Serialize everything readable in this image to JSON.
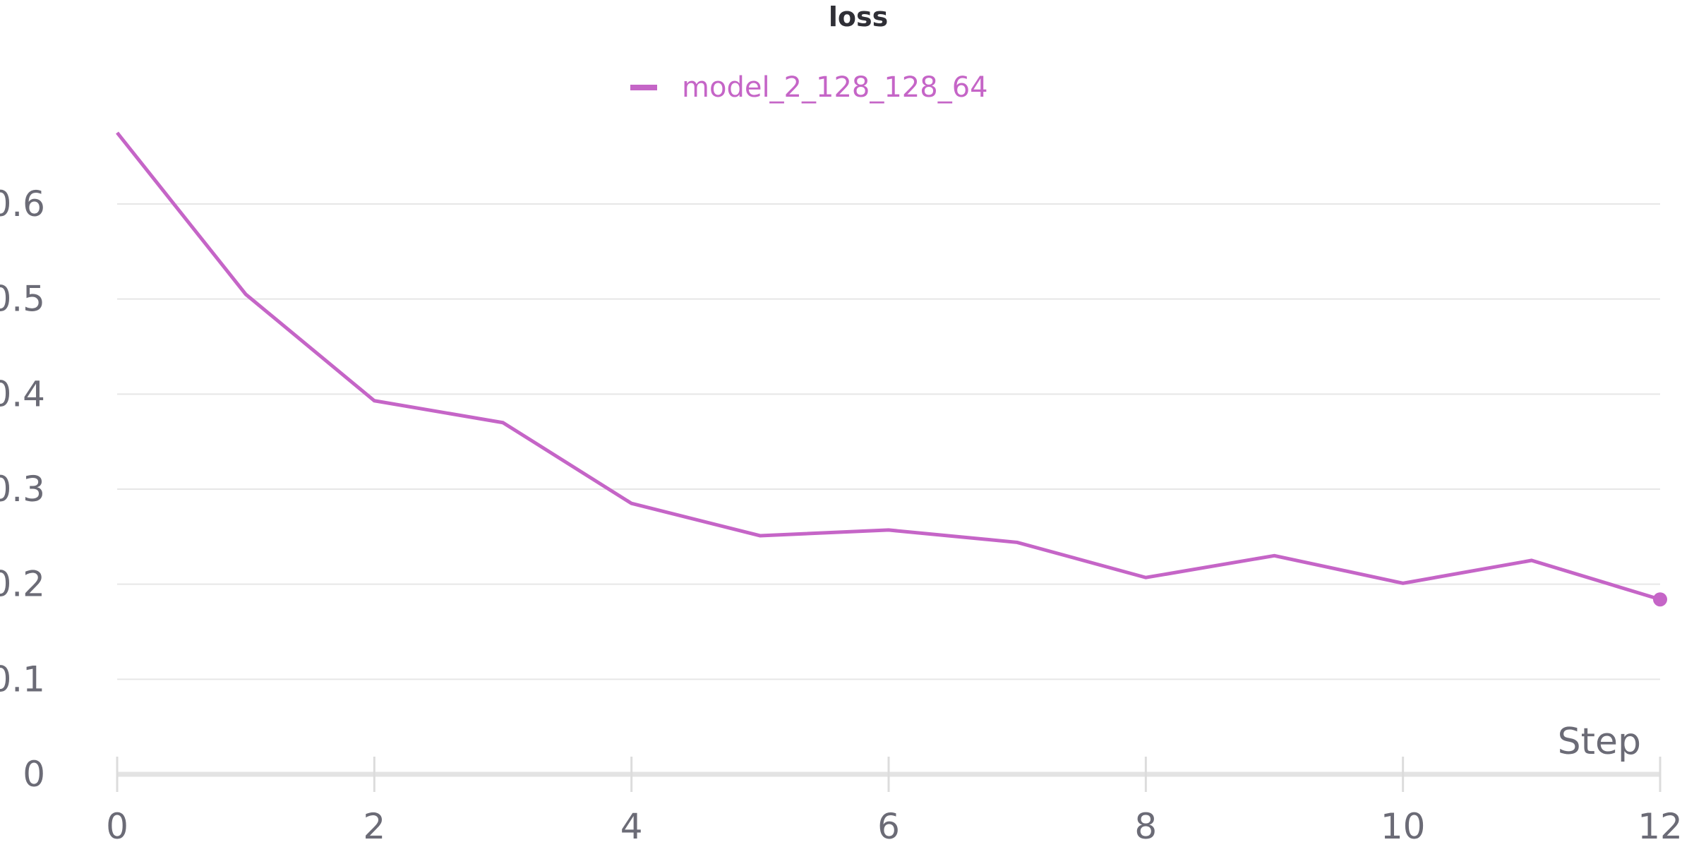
{
  "chart_data": {
    "type": "line",
    "title": "loss",
    "xlabel": "Step",
    "ylabel": "",
    "xlim": [
      0,
      12
    ],
    "ylim": [
      0,
      0.7
    ],
    "xticks": [
      "0",
      "2",
      "4",
      "6",
      "8",
      "10",
      "12"
    ],
    "yticks": [
      "0",
      "0.1",
      "0.2",
      "0.3",
      "0.4",
      "0.5",
      "0.6"
    ],
    "grid": true,
    "legend_position": "top-center",
    "series": [
      {
        "name": "model_2_128_128_64",
        "color": "#c565c7",
        "x": [
          0,
          1,
          2,
          3,
          4,
          5,
          6,
          7,
          8,
          9,
          10,
          11,
          12
        ],
        "y": [
          0.675,
          0.505,
          0.393,
          0.37,
          0.285,
          0.251,
          0.257,
          0.244,
          0.207,
          0.23,
          0.201,
          0.225,
          0.184
        ]
      }
    ]
  }
}
